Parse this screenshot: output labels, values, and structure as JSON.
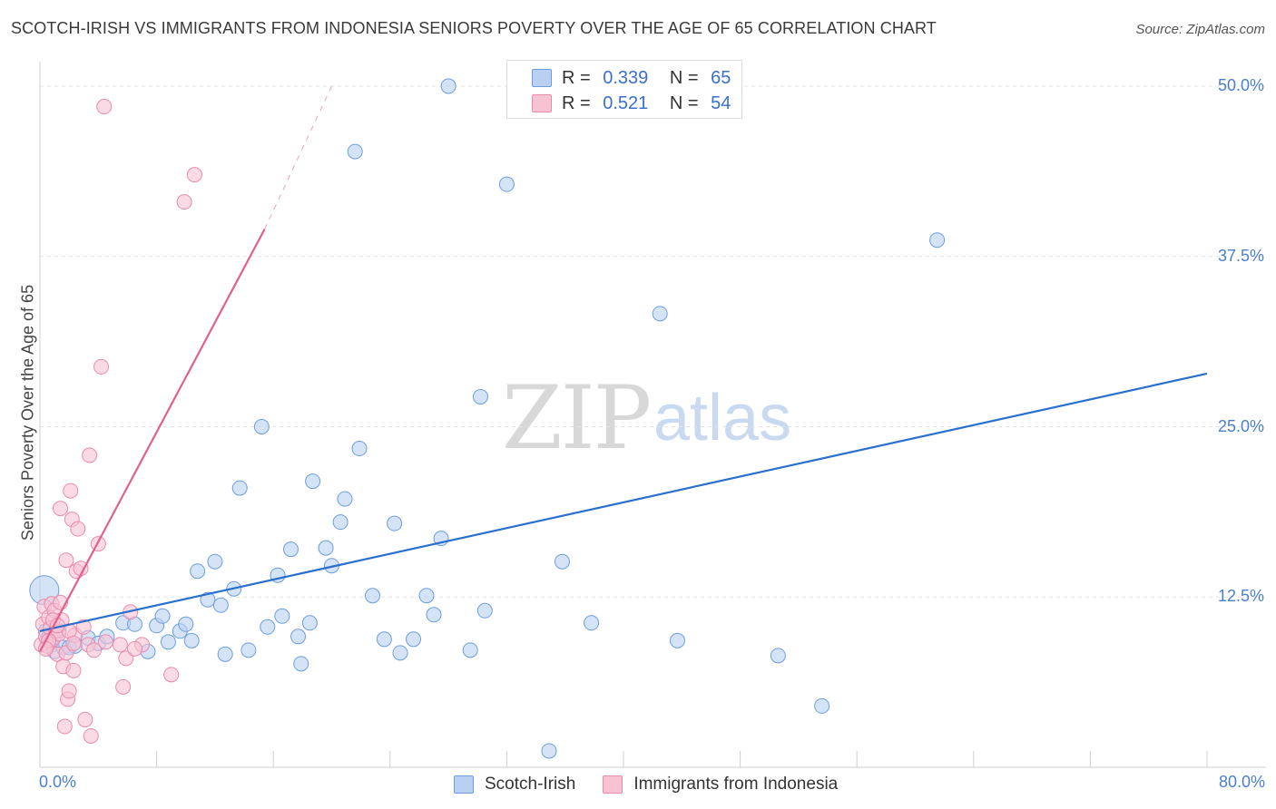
{
  "title": "SCOTCH-IRISH VS IMMIGRANTS FROM INDONESIA SENIORS POVERTY OVER THE AGE OF 65 CORRELATION CHART",
  "source": "Source: ZipAtlas.com",
  "watermark": {
    "zip": "ZIP",
    "atlas": "atlas"
  },
  "legend_top": [
    {
      "r_label": "R =",
      "r_value": "0.339",
      "n_label": "N =",
      "n_value": "65"
    },
    {
      "r_label": "R =",
      "r_value": "0.521",
      "n_label": "N =",
      "n_value": "54"
    }
  ],
  "legend_bottom": [
    "Scotch-Irish",
    "Immigrants from Indonesia"
  ],
  "colors": {
    "blue_fill": "#b9d0f2",
    "blue_stroke": "#6d9ee0",
    "blue_line": "#2a6fce",
    "pink_fill": "#f7c3d3",
    "pink_stroke": "#eb8bab",
    "pink_line": "#e0608f",
    "axis_text": "#4a7fd0",
    "grid": "#e4e4e4"
  },
  "chart_data": {
    "type": "scatter",
    "title": "SCOTCH-IRISH VS IMMIGRANTS FROM INDONESIA SENIORS POVERTY OVER THE AGE OF 65 CORRELATION CHART",
    "xlabel": "",
    "ylabel": "Seniors Poverty Over the Age of 65",
    "xlim": [
      0,
      80
    ],
    "ylim": [
      0,
      50
    ],
    "x_tick_labels": [
      "0.0%",
      "80.0%"
    ],
    "y_ticks": [
      12.5,
      25.0,
      37.5,
      50.0
    ],
    "y_tick_labels": [
      "12.5%",
      "25.0%",
      "37.5%",
      "50.0%"
    ],
    "series": [
      {
        "name": "Scotch-Irish",
        "r": 0.339,
        "n": 65,
        "trend": {
          "x0": 0,
          "y0": 10.0,
          "x1": 80,
          "y1": 28.9
        },
        "points": [
          [
            0.3,
            13.0
          ],
          [
            0.4,
            10.0
          ],
          [
            0.6,
            9.5
          ],
          [
            0.8,
            9.0
          ],
          [
            1.0,
            8.5
          ],
          [
            1.3,
            10.0
          ],
          [
            1.6,
            8.8
          ],
          [
            2.0,
            8.8
          ],
          [
            2.4,
            8.9
          ],
          [
            3.3,
            9.5
          ],
          [
            4.0,
            9.1
          ],
          [
            4.6,
            9.6
          ],
          [
            5.7,
            10.6
          ],
          [
            6.5,
            10.5
          ],
          [
            7.4,
            8.5
          ],
          [
            8.0,
            10.4
          ],
          [
            8.4,
            11.1
          ],
          [
            8.8,
            9.2
          ],
          [
            9.6,
            10.0
          ],
          [
            10.0,
            10.5
          ],
          [
            10.4,
            9.3
          ],
          [
            10.8,
            14.4
          ],
          [
            11.5,
            12.3
          ],
          [
            12.0,
            15.1
          ],
          [
            12.4,
            11.9
          ],
          [
            12.7,
            8.3
          ],
          [
            13.3,
            13.1
          ],
          [
            13.7,
            20.5
          ],
          [
            14.3,
            8.6
          ],
          [
            15.2,
            25.0
          ],
          [
            15.6,
            10.3
          ],
          [
            16.3,
            14.1
          ],
          [
            16.6,
            11.1
          ],
          [
            17.2,
            16.0
          ],
          [
            17.7,
            9.6
          ],
          [
            17.9,
            7.6
          ],
          [
            18.5,
            10.6
          ],
          [
            18.7,
            21.0
          ],
          [
            19.6,
            16.1
          ],
          [
            20.0,
            14.8
          ],
          [
            20.6,
            18.0
          ],
          [
            20.9,
            19.7
          ],
          [
            21.6,
            45.2
          ],
          [
            21.9,
            23.4
          ],
          [
            22.8,
            12.6
          ],
          [
            23.6,
            9.4
          ],
          [
            24.3,
            17.9
          ],
          [
            24.7,
            8.4
          ],
          [
            25.6,
            9.4
          ],
          [
            26.5,
            12.6
          ],
          [
            27.0,
            11.2
          ],
          [
            27.5,
            16.8
          ],
          [
            28.0,
            50.0
          ],
          [
            29.5,
            8.6
          ],
          [
            30.2,
            27.2
          ],
          [
            30.5,
            11.5
          ],
          [
            32.0,
            42.8
          ],
          [
            34.9,
            1.2
          ],
          [
            35.8,
            15.1
          ],
          [
            37.8,
            10.6
          ],
          [
            42.5,
            33.3
          ],
          [
            43.7,
            9.3
          ],
          [
            50.6,
            8.2
          ],
          [
            53.6,
            4.5
          ],
          [
            61.5,
            38.7
          ]
        ]
      },
      {
        "name": "Immigrants from Indonesia",
        "r": 0.521,
        "n": 54,
        "trend": {
          "x0": 0,
          "y0": 8.5,
          "x1": 15.4,
          "y1": 39.5,
          "dash_x1": 20.0,
          "dash_y1": 50.0
        },
        "points": [
          [
            0.1,
            9.0
          ],
          [
            0.2,
            10.5
          ],
          [
            0.3,
            11.8
          ],
          [
            0.4,
            9.6
          ],
          [
            0.5,
            8.9
          ],
          [
            0.6,
            11.0
          ],
          [
            0.7,
            10.2
          ],
          [
            0.8,
            12.0
          ],
          [
            0.9,
            9.4
          ],
          [
            1.0,
            11.5
          ],
          [
            1.1,
            10.0
          ],
          [
            1.2,
            8.3
          ],
          [
            1.3,
            9.8
          ],
          [
            1.4,
            19.0
          ],
          [
            1.5,
            10.8
          ],
          [
            1.6,
            7.4
          ],
          [
            1.7,
            3.0
          ],
          [
            1.8,
            15.2
          ],
          [
            1.9,
            5.0
          ],
          [
            2.0,
            5.6
          ],
          [
            2.1,
            20.3
          ],
          [
            2.2,
            18.2
          ],
          [
            2.3,
            7.1
          ],
          [
            2.4,
            9.7
          ],
          [
            2.5,
            14.4
          ],
          [
            2.6,
            17.5
          ],
          [
            2.8,
            14.6
          ],
          [
            3.0,
            10.3
          ],
          [
            3.1,
            3.5
          ],
          [
            3.3,
            9.0
          ],
          [
            3.5,
            2.3
          ],
          [
            3.7,
            8.6
          ],
          [
            4.2,
            29.4
          ],
          [
            4.0,
            16.4
          ],
          [
            4.5,
            9.2
          ],
          [
            5.5,
            9.0
          ],
          [
            5.9,
            8.0
          ],
          [
            6.2,
            11.4
          ],
          [
            7.0,
            9.0
          ],
          [
            3.4,
            22.9
          ],
          [
            4.4,
            48.5
          ],
          [
            9.0,
            6.8
          ],
          [
            9.9,
            41.5
          ],
          [
            10.6,
            43.5
          ],
          [
            1.4,
            12.1
          ],
          [
            0.9,
            10.8
          ],
          [
            2.0,
            10.0
          ],
          [
            0.6,
            9.3
          ],
          [
            1.2,
            10.4
          ],
          [
            5.7,
            5.9
          ],
          [
            6.5,
            8.7
          ],
          [
            1.8,
            8.4
          ],
          [
            2.3,
            9.1
          ],
          [
            0.4,
            8.7
          ]
        ]
      }
    ]
  }
}
